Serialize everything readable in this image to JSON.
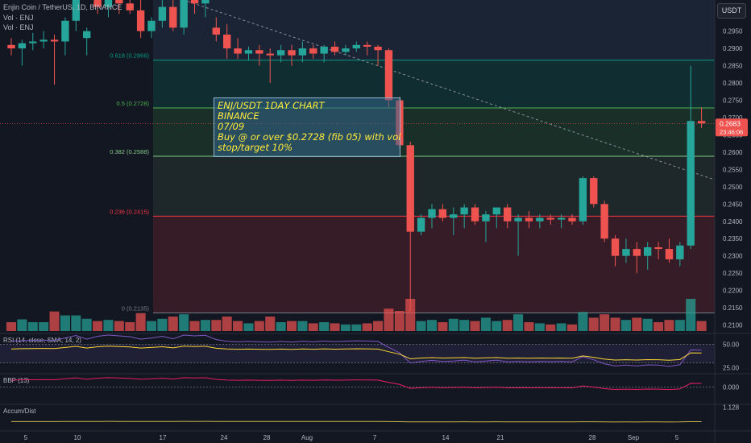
{
  "header": {
    "symbol_line": "Enjin Coin / TetherUS, 1D, BINANCE",
    "vol_line_1": "Vol · ENJ",
    "vol_line_2": "Vol · ENJ"
  },
  "currency_button": "USDT",
  "annotation": {
    "lines": [
      "ENJ/USDT 1DAY CHART",
      "BINANCE",
      "07/09",
      "Buy @ or over $0.2728 (fib 05) with vol",
      "stop/target 10%"
    ]
  },
  "colors": {
    "background": "#131722",
    "up": "#26a69a",
    "down": "#ef5350",
    "fib_0": "#787b86",
    "fib_236": "#f23645",
    "fib_382": "#81c784",
    "fib_5": "#4caf50",
    "fib_618": "#089981",
    "rsi": "#7e57c2",
    "rsi_ma": "#fdd835",
    "bbp": "#e91e63",
    "accum": "#c6b04a"
  },
  "chart_data": {
    "type": "candlestick",
    "symbol": "ENJ/USDT",
    "interval": "1D",
    "exchange": "BINANCE",
    "price_axis": {
      "ticks": [
        "0.3000",
        "0.2950",
        "0.2900",
        "0.2850",
        "0.2800",
        "0.2750",
        "0.2700",
        "0.2650",
        "0.2600",
        "0.2550",
        "0.2500",
        "0.2450",
        "0.2400",
        "0.2350",
        "0.2300",
        "0.2250",
        "0.2200",
        "0.2150",
        "0.2100"
      ],
      "range": [
        0.2085,
        0.304
      ]
    },
    "x_axis": {
      "ticks": [
        "5",
        "10",
        "17",
        "24",
        "28",
        "Aug",
        "7",
        "14",
        "21",
        "28",
        "Sep",
        "5"
      ]
    },
    "fib_levels": [
      {
        "label": "0.618 (0.2866)",
        "value": 0.2866,
        "key": "fib_618"
      },
      {
        "label": "0.5 (0.2728)",
        "value": 0.2728,
        "key": "fib_5"
      },
      {
        "label": "0.382 (0.2588)",
        "value": 0.2588,
        "key": "fib_382"
      },
      {
        "label": "0.236 (0.2415)",
        "value": 0.2415,
        "key": "fib_236"
      },
      {
        "label": "0 (0.2135)",
        "value": 0.2135,
        "key": "fib_0"
      }
    ],
    "last_price": {
      "value": "0.2683",
      "countdown": "23:46:06"
    },
    "trend_line": {
      "from": [
        0.25,
        0.3045
      ],
      "to": [
        1.0,
        0.252
      ]
    },
    "candles": [
      [
        0.291,
        0.293,
        0.288,
        0.29
      ],
      [
        0.29,
        0.2925,
        0.285,
        0.2915
      ],
      [
        0.2915,
        0.2945,
        0.2895,
        0.292
      ],
      [
        0.292,
        0.295,
        0.29,
        0.2925
      ],
      [
        0.2925,
        0.294,
        0.2795,
        0.292
      ],
      [
        0.292,
        0.299,
        0.288,
        0.298
      ],
      [
        0.298,
        0.306,
        0.295,
        0.304
      ],
      [
        0.293,
        0.296,
        0.288,
        0.295
      ],
      [
        0.304,
        0.306,
        0.3,
        0.302
      ],
      [
        0.302,
        0.306,
        0.299,
        0.305
      ],
      [
        0.305,
        0.306,
        0.3,
        0.303
      ],
      [
        0.303,
        0.305,
        0.3,
        0.301
      ],
      [
        0.301,
        0.306,
        0.293,
        0.295
      ],
      [
        0.295,
        0.299,
        0.293,
        0.298
      ],
      [
        0.298,
        0.304,
        0.296,
        0.302
      ],
      [
        0.302,
        0.305,
        0.295,
        0.296
      ],
      [
        0.296,
        0.306,
        0.294,
        0.305
      ],
      [
        0.305,
        0.306,
        0.3,
        0.303
      ],
      [
        0.303,
        0.306,
        0.299,
        0.3045
      ],
      [
        0.296,
        0.299,
        0.292,
        0.294
      ],
      [
        0.294,
        0.297,
        0.287,
        0.29
      ],
      [
        0.29,
        0.293,
        0.287,
        0.2885
      ],
      [
        0.2885,
        0.2905,
        0.2865,
        0.2895
      ],
      [
        0.2895,
        0.291,
        0.285,
        0.2885
      ],
      [
        0.2885,
        0.29,
        0.28,
        0.288
      ],
      [
        0.288,
        0.291,
        0.286,
        0.2895
      ],
      [
        0.2895,
        0.291,
        0.285,
        0.288
      ],
      [
        0.288,
        0.292,
        0.286,
        0.29
      ],
      [
        0.29,
        0.291,
        0.287,
        0.2885
      ],
      [
        0.2885,
        0.291,
        0.286,
        0.2905
      ],
      [
        0.2905,
        0.292,
        0.288,
        0.289
      ],
      [
        0.289,
        0.291,
        0.288,
        0.29
      ],
      [
        0.29,
        0.292,
        0.289,
        0.291
      ],
      [
        0.291,
        0.292,
        0.288,
        0.2905
      ],
      [
        0.2905,
        0.291,
        0.285,
        0.2895
      ],
      [
        0.2895,
        0.29,
        0.273,
        0.275
      ],
      [
        0.275,
        0.276,
        0.261,
        0.262
      ],
      [
        0.262,
        0.263,
        0.214,
        0.237
      ],
      [
        0.237,
        0.242,
        0.236,
        0.241
      ],
      [
        0.241,
        0.245,
        0.238,
        0.2435
      ],
      [
        0.2435,
        0.245,
        0.24,
        0.241
      ],
      [
        0.241,
        0.244,
        0.236,
        0.242
      ],
      [
        0.242,
        0.245,
        0.238,
        0.244
      ],
      [
        0.244,
        0.245,
        0.239,
        0.24
      ],
      [
        0.24,
        0.243,
        0.234,
        0.242
      ],
      [
        0.242,
        0.244,
        0.238,
        0.244
      ],
      [
        0.244,
        0.245,
        0.238,
        0.24
      ],
      [
        0.24,
        0.242,
        0.23,
        0.241
      ],
      [
        0.241,
        0.243,
        0.238,
        0.24
      ],
      [
        0.24,
        0.242,
        0.238,
        0.241
      ],
      [
        0.241,
        0.242,
        0.239,
        0.2405
      ],
      [
        0.2405,
        0.242,
        0.238,
        0.241
      ],
      [
        0.241,
        0.242,
        0.239,
        0.24
      ],
      [
        0.24,
        0.253,
        0.239,
        0.2525
      ],
      [
        0.2525,
        0.253,
        0.244,
        0.245
      ],
      [
        0.245,
        0.246,
        0.234,
        0.235
      ],
      [
        0.235,
        0.236,
        0.227,
        0.23
      ],
      [
        0.23,
        0.235,
        0.228,
        0.232
      ],
      [
        0.232,
        0.234,
        0.225,
        0.23
      ],
      [
        0.23,
        0.234,
        0.226,
        0.2325
      ],
      [
        0.2325,
        0.234,
        0.229,
        0.232
      ],
      [
        0.232,
        0.235,
        0.228,
        0.229
      ],
      [
        0.229,
        0.234,
        0.227,
        0.233
      ],
      [
        0.233,
        0.285,
        0.232,
        0.269
      ],
      [
        0.269,
        0.273,
        0.267,
        0.2683
      ]
    ],
    "volume_labels": [],
    "indicators": [
      {
        "name": "RSI (14, close, SMA, 14, 2)",
        "ticks": [
          "50.00",
          "25.00"
        ],
        "range": [
          20,
          60
        ],
        "bands": [
          30,
          50
        ]
      },
      {
        "name": "BBP (13)",
        "ticks": [
          "0.000"
        ],
        "range": [
          -0.08,
          0.06
        ],
        "zero": 0
      },
      {
        "name": "Accum/Dist",
        "ticks": [
          "1.128"
        ],
        "range": [
          0.0,
          1.2
        ]
      }
    ]
  }
}
